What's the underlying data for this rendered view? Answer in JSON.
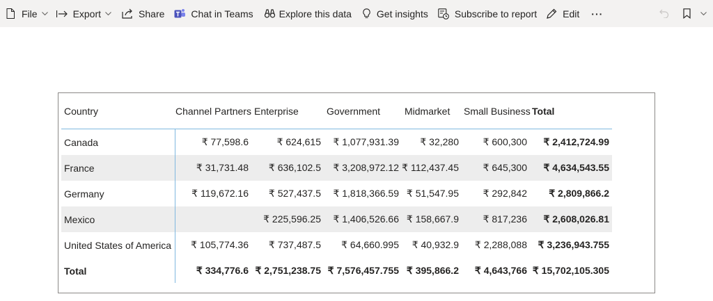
{
  "toolbar": {
    "file": "File",
    "export": "Export",
    "share": "Share",
    "chat_in_teams": "Chat in Teams",
    "explore": "Explore this data",
    "insights": "Get insights",
    "subscribe": "Subscribe to report",
    "edit": "Edit",
    "more": "···"
  },
  "matrix": {
    "headers": {
      "country": "Country",
      "channel_partners": "Channel Partners",
      "enterprise": "Enterprise",
      "government": "Government",
      "midmarket": "Midmarket",
      "small_business": "Small Business",
      "total": "Total"
    },
    "rows": [
      {
        "country": "Canada",
        "channel_partners": "₹ 77,598.6",
        "enterprise": "₹ 624,615",
        "government": "₹ 1,077,931.39",
        "midmarket": "₹ 32,280",
        "small_business": "₹ 600,300",
        "total": "₹ 2,412,724.99"
      },
      {
        "country": "France",
        "channel_partners": "₹ 31,731.48",
        "enterprise": "₹ 636,102.5",
        "government": "₹ 3,208,972.12",
        "midmarket": "₹ 112,437.45",
        "small_business": "₹ 645,300",
        "total": "₹ 4,634,543.55"
      },
      {
        "country": "Germany",
        "channel_partners": "₹ 119,672.16",
        "enterprise": "₹ 527,437.5",
        "government": "₹ 1,818,366.59",
        "midmarket": "₹ 51,547.95",
        "small_business": "₹ 292,842",
        "total": "₹ 2,809,866.2"
      },
      {
        "country": "Mexico",
        "channel_partners": "",
        "enterprise": "₹ 225,596.25",
        "government": "₹ 1,406,526.66",
        "midmarket": "₹ 158,667.9",
        "small_business": "₹ 817,236",
        "total": "₹ 2,608,026.81"
      },
      {
        "country": "United States of America",
        "channel_partners": "₹ 105,774.36",
        "enterprise": "₹ 737,487.5",
        "government": "₹ 64,660.995",
        "midmarket": "₹ 40,932.9",
        "small_business": "₹ 2,288,088",
        "total": "₹ 3,236,943.755"
      }
    ],
    "totals": {
      "label": "Total",
      "channel_partners": "₹ 334,776.6",
      "enterprise": "₹ 2,751,238.75",
      "government": "₹ 7,576,457.755",
      "midmarket": "₹ 395,866.2",
      "small_business": "₹ 4,643,766",
      "total": "₹ 15,702,105.305"
    }
  }
}
